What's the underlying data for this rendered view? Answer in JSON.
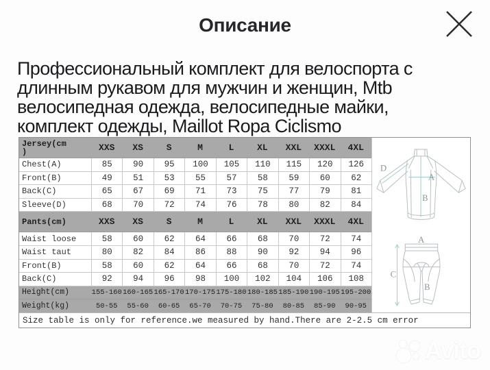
{
  "modal": {
    "title": "Описание"
  },
  "description": {
    "lines": [
      "Профессиональный комплект для велоспорта с",
      "длинным рукавом для мужчин и женщин, Mtb",
      "велосипедная одежда, велосипедные майки,",
      "комплект одежды, Maillot Ropa Ciclismo"
    ]
  },
  "size_table": {
    "sections": [
      {
        "label": "Jersey(cm\n)",
        "sizes": [
          "XXS",
          "XS",
          "S",
          "M",
          "L",
          "XL",
          "XXL",
          "XXXL",
          "4XL"
        ],
        "rows": [
          {
            "label": "Chest(A)",
            "values": [
              "85",
              "90",
              "95",
              "100",
              "105",
              "110",
              "115",
              "120",
              "126"
            ]
          },
          {
            "label": "Front(B)",
            "values": [
              "49",
              "51",
              "53",
              "55",
              "57",
              "58",
              "59",
              "60",
              "62"
            ]
          },
          {
            "label": "Back(C)",
            "values": [
              "65",
              "67",
              "69",
              "71",
              "73",
              "75",
              "77",
              "79",
              "81"
            ]
          },
          {
            "label": "Sleeve(D)",
            "values": [
              "68",
              "70",
              "72",
              "74",
              "76",
              "78",
              "80",
              "82",
              "84"
            ]
          }
        ]
      },
      {
        "label": "Pants(cm)",
        "sizes": [
          "XXS",
          "XS",
          "S",
          "M",
          "L",
          "XL",
          "XXL",
          "XXXL",
          "4XL"
        ],
        "rows": [
          {
            "label": "Waist loose",
            "values": [
              "58",
              "60",
              "62",
              "64",
              "66",
              "68",
              "70",
              "72",
              "74"
            ]
          },
          {
            "label": "Waist taut",
            "values": [
              "80",
              "82",
              "84",
              "86",
              "88",
              "90",
              "92",
              "94",
              "96"
            ]
          },
          {
            "label": "Front(B)",
            "values": [
              "58",
              "60",
              "62",
              "64",
              "66",
              "68",
              "70",
              "72",
              "74"
            ]
          },
          {
            "label": "Back(C)",
            "values": [
              "92",
              "94",
              "96",
              "98",
              "100",
              "102",
              "104",
              "106",
              "108"
            ]
          }
        ]
      }
    ],
    "gray_rows": [
      {
        "label": "Height(cm)",
        "values": [
          "155-160",
          "160-165",
          "165-170",
          "170-175",
          "175-180",
          "180-185",
          "185-190",
          "190-195",
          "195-200"
        ]
      },
      {
        "label": "Weight(kg)",
        "values": [
          "50-55",
          "55-60",
          "60-65",
          "65-70",
          "70-75",
          "75-80",
          "80-85",
          "85-90",
          "90-95"
        ]
      }
    ],
    "note": "Size table is only for reference.we measured by hand.There are 2-2.5 cm error"
  },
  "diagram": {
    "jersey_label_a": "A",
    "jersey_label_b": "B",
    "jersey_label_d": "D",
    "pants_label_a": "A",
    "pants_label_b": "B",
    "pants_label_c": "C"
  },
  "watermark": {
    "brand": "Avito"
  },
  "colors": {
    "table_header_gray": "#a9a9a9",
    "measure_teal": "#9fd0cc",
    "text_dark": "#1b1b1e"
  }
}
